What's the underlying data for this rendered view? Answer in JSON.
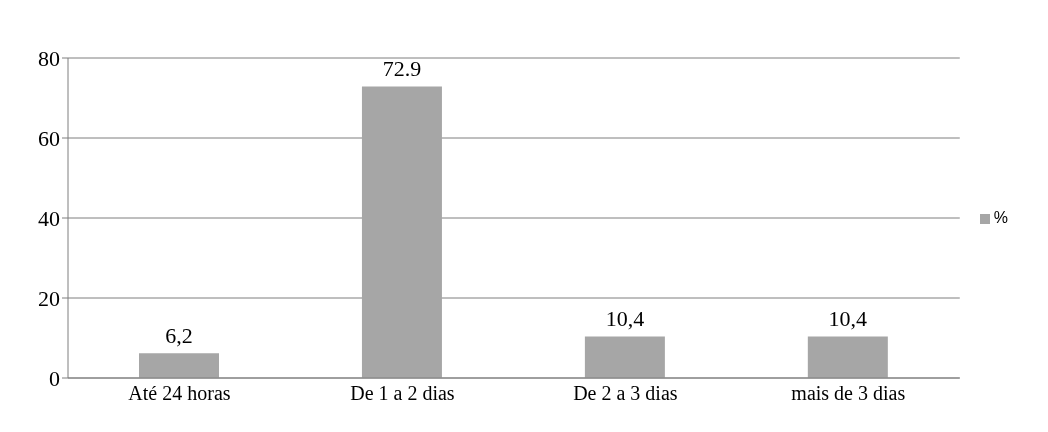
{
  "chart_data": {
    "type": "bar",
    "categories": [
      "Até 24 horas",
      "De 1 a 2 dias",
      "De 2 a 3 dias",
      "mais de 3 dias"
    ],
    "series": [
      {
        "name": "%",
        "color": "#a6a6a6",
        "values": [
          6.2,
          72.9,
          10.4,
          10.4
        ],
        "value_labels": [
          "6,2",
          "72.9",
          "10,4",
          "10,4"
        ]
      }
    ],
    "ylim": [
      0,
      80
    ],
    "yticks": [
      0,
      20,
      40,
      60,
      80
    ],
    "grid": "y",
    "legend": "right"
  }
}
